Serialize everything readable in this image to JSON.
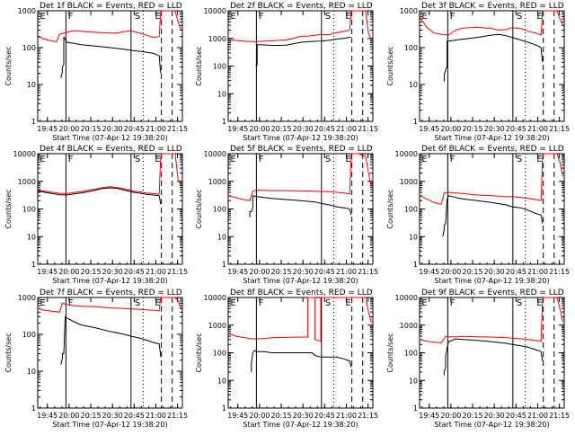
{
  "colors": {
    "events": "#000000",
    "lld": "#ff0000",
    "axis": "#000000",
    "background": "#ffffff"
  },
  "x_ticks": [
    "19:45",
    "20:00",
    "20:15",
    "20:30",
    "20:45",
    "21:00",
    "21:15"
  ],
  "xlabel": "Start Time (07-Apr-12 19:38:20)",
  "ylabel": "Counts/sec",
  "flags": [
    "E",
    "F",
    "S",
    "E"
  ],
  "chart_data": [
    {
      "type": "line",
      "title": "Det 1f BLACK = Events, RED = LLD",
      "x_unit": "minutes after 19:38:20",
      "ylim": [
        1,
        1000
      ],
      "yscale": "log",
      "y_ticks": [
        "1",
        "10",
        "100",
        "1000"
      ],
      "xlim": [
        0,
        100
      ],
      "series": [
        {
          "color": "black",
          "x": [
            16,
            17,
            17,
            18,
            18,
            20,
            25,
            30,
            40,
            50,
            60,
            64,
            70,
            75,
            80,
            82,
            84,
            85
          ],
          "y": [
            15,
            22,
            30,
            35,
            200,
            140,
            130,
            120,
            110,
            100,
            90,
            85,
            80,
            75,
            70,
            65,
            60,
            20
          ]
        },
        {
          "color": "red",
          "x": [
            0,
            5,
            10,
            13,
            15,
            20,
            25,
            30,
            40,
            50,
            55,
            60,
            64,
            70,
            75,
            80,
            84,
            85,
            86,
            90,
            95,
            97,
            99
          ],
          "y": [
            200,
            170,
            150,
            145,
            230,
            260,
            290,
            280,
            260,
            250,
            250,
            270,
            290,
            250,
            220,
            190,
            200,
            900,
            1000,
            1000,
            1000,
            500,
            300
          ]
        }
      ]
    },
    {
      "type": "line",
      "title": "Det 2f BLACK = Events, RED = LLD",
      "x_unit": "minutes after 19:38:20",
      "ylim": [
        1,
        10000
      ],
      "yscale": "log",
      "y_ticks": [
        "1",
        "10",
        "100",
        "1000",
        "10000"
      ],
      "xlim": [
        0,
        100
      ],
      "series": [
        {
          "color": "black",
          "x": [
            19,
            20,
            20,
            25,
            30,
            35,
            40,
            50,
            60,
            64,
            70,
            72,
            75,
            80,
            82,
            84,
            85
          ],
          "y": [
            100,
            110,
            600,
            580,
            560,
            560,
            570,
            720,
            790,
            800,
            860,
            900,
            950,
            1000,
            1050,
            1100,
            1100
          ]
        },
        {
          "color": "red",
          "x": [
            0,
            5,
            10,
            15,
            20,
            25,
            30,
            35,
            40,
            45,
            50,
            55,
            60,
            64,
            70,
            72,
            75,
            80,
            84,
            85,
            86,
            90,
            95,
            97,
            99
          ],
          "y": [
            900,
            850,
            800,
            780,
            760,
            800,
            820,
            850,
            900,
            1000,
            1200,
            1200,
            1300,
            1400,
            1350,
            1500,
            1600,
            1800,
            2000,
            10000,
            10000,
            10000,
            10000,
            1500,
            900
          ]
        }
      ]
    },
    {
      "type": "line",
      "title": "Det 3f BLACK = Events, RED = LLD",
      "x_unit": "minutes after 19:38:20",
      "ylim": [
        1,
        1000
      ],
      "yscale": "log",
      "y_ticks": [
        "1",
        "10",
        "100",
        "1000"
      ],
      "xlim": [
        0,
        100
      ],
      "series": [
        {
          "color": "black",
          "x": [
            17,
            17,
            18,
            19,
            19,
            20,
            25,
            30,
            40,
            50,
            55,
            60,
            64,
            70,
            75,
            80,
            82,
            84,
            85
          ],
          "y": [
            12,
            18,
            25,
            30,
            150,
            150,
            160,
            170,
            190,
            220,
            230,
            210,
            190,
            160,
            140,
            120,
            110,
            100,
            40
          ]
        },
        {
          "color": "red",
          "x": [
            0,
            5,
            10,
            15,
            20,
            25,
            30,
            40,
            50,
            55,
            60,
            64,
            70,
            75,
            80,
            84,
            85,
            86,
            90,
            95,
            97,
            99
          ],
          "y": [
            700,
            350,
            250,
            230,
            220,
            300,
            340,
            360,
            330,
            300,
            310,
            350,
            330,
            280,
            250,
            220,
            1000,
            1000,
            1000,
            1000,
            600,
            400
          ]
        }
      ]
    },
    {
      "type": "line",
      "title": "Det 4f BLACK = Events, RED = LLD",
      "x_unit": "minutes after 19:38:20",
      "ylim": [
        1,
        10000
      ],
      "yscale": "log",
      "y_ticks": [
        "1",
        "10",
        "100",
        "1000",
        "10000"
      ],
      "xlim": [
        0,
        100
      ],
      "series": [
        {
          "color": "black",
          "x": [
            0,
            5,
            10,
            15,
            20,
            25,
            30,
            35,
            40,
            45,
            50,
            55,
            60,
            64,
            66,
            70,
            75,
            80,
            84,
            85
          ],
          "y": [
            450,
            400,
            360,
            330,
            320,
            350,
            380,
            420,
            480,
            550,
            580,
            550,
            480,
            430,
            400,
            380,
            340,
            320,
            300,
            150
          ]
        },
        {
          "color": "red",
          "x": [
            0,
            5,
            10,
            15,
            20,
            25,
            30,
            35,
            40,
            45,
            50,
            55,
            60,
            64,
            66,
            70,
            75,
            80,
            84,
            85,
            86,
            90,
            95,
            97,
            99
          ],
          "y": [
            480,
            440,
            400,
            370,
            360,
            390,
            420,
            470,
            530,
            600,
            640,
            600,
            530,
            480,
            440,
            420,
            380,
            360,
            340,
            8000,
            10000,
            10000,
            10000,
            1200,
            700
          ]
        }
      ]
    },
    {
      "type": "line",
      "title": "Det 5f BLACK = Events, RED = LLD",
      "x_unit": "minutes after 19:38:20",
      "ylim": [
        1,
        10000
      ],
      "yscale": "log",
      "y_ticks": [
        "1",
        "10",
        "100",
        "1000",
        "10000"
      ],
      "xlim": [
        0,
        100
      ],
      "series": [
        {
          "color": "black",
          "x": [
            15,
            15,
            16,
            17,
            17,
            20,
            25,
            30,
            40,
            50,
            60,
            64,
            70,
            75,
            80,
            84,
            85
          ],
          "y": [
            50,
            80,
            80,
            110,
            300,
            280,
            260,
            240,
            220,
            200,
            180,
            160,
            140,
            120,
            110,
            100,
            60
          ]
        },
        {
          "color": "red",
          "x": [
            0,
            5,
            10,
            15,
            17,
            20,
            25,
            30,
            40,
            50,
            60,
            64,
            70,
            75,
            80,
            84,
            85,
            86,
            90,
            95,
            97,
            99
          ],
          "y": [
            300,
            260,
            220,
            200,
            450,
            480,
            470,
            460,
            460,
            450,
            440,
            430,
            420,
            400,
            380,
            350,
            9000,
            10000,
            10000,
            8000,
            2000,
            600
          ]
        }
      ]
    },
    {
      "type": "line",
      "title": "Det 6f BLACK = Events, RED = LLD",
      "x_unit": "minutes after 19:38:20",
      "ylim": [
        1,
        10000
      ],
      "yscale": "log",
      "y_ticks": [
        "1",
        "10",
        "100",
        "1000",
        "10000"
      ],
      "xlim": [
        0,
        100
      ],
      "series": [
        {
          "color": "black",
          "x": [
            16,
            17,
            17,
            18,
            19,
            20,
            25,
            30,
            40,
            50,
            60,
            64,
            70,
            75,
            80,
            84,
            85
          ],
          "y": [
            10,
            18,
            25,
            30,
            220,
            300,
            260,
            230,
            200,
            170,
            140,
            120,
            110,
            90,
            70,
            60,
            30
          ]
        },
        {
          "color": "red",
          "x": [
            0,
            5,
            10,
            15,
            17,
            20,
            25,
            30,
            40,
            50,
            60,
            64,
            70,
            75,
            80,
            84,
            85,
            86,
            90,
            95,
            97,
            99
          ],
          "y": [
            300,
            230,
            170,
            150,
            380,
            400,
            380,
            360,
            320,
            300,
            280,
            280,
            260,
            240,
            220,
            200,
            8000,
            10000,
            10000,
            10000,
            5000,
            1500
          ]
        }
      ]
    },
    {
      "type": "line",
      "title": "Det 7f BLACK = Events, RED = LLD",
      "x_unit": "minutes after 19:38:20",
      "ylim": [
        1,
        1000
      ],
      "yscale": "log",
      "y_ticks": [
        "1",
        "10",
        "100",
        "1000"
      ],
      "xlim": [
        0,
        100
      ],
      "series": [
        {
          "color": "black",
          "x": [
            16,
            17,
            17,
            18,
            19,
            20,
            25,
            30,
            40,
            50,
            60,
            64,
            70,
            75,
            80,
            84,
            85
          ],
          "y": [
            15,
            22,
            30,
            30,
            300,
            280,
            220,
            180,
            150,
            120,
            100,
            90,
            80,
            70,
            60,
            55,
            25
          ]
        },
        {
          "color": "red",
          "x": [
            0,
            5,
            10,
            15,
            17,
            20,
            25,
            30,
            40,
            50,
            60,
            64,
            70,
            75,
            80,
            84,
            85,
            86,
            90,
            95,
            97,
            99
          ],
          "y": [
            500,
            450,
            420,
            400,
            700,
            650,
            600,
            580,
            560,
            520,
            500,
            490,
            480,
            460,
            450,
            430,
            1000,
            1000,
            1000,
            1000,
            800,
            500
          ]
        }
      ]
    },
    {
      "type": "line",
      "title": "Det 8f BLACK = Events, RED = LLD",
      "x_unit": "minutes after 19:38:20",
      "ylim": [
        1,
        10000
      ],
      "yscale": "log",
      "y_ticks": [
        "1",
        "10",
        "100",
        "1000",
        "10000"
      ],
      "xlim": [
        0,
        100
      ],
      "series": [
        {
          "color": "black",
          "x": [
            16,
            16,
            17,
            18,
            20,
            25,
            30,
            40,
            50,
            55,
            58,
            60,
            64,
            70,
            75,
            80,
            84,
            85
          ],
          "y": [
            20,
            40,
            100,
            120,
            110,
            110,
            100,
            100,
            100,
            100,
            100,
            80,
            70,
            70,
            70,
            60,
            50,
            30
          ]
        },
        {
          "color": "red",
          "x": [
            0,
            5,
            10,
            15,
            17,
            20,
            25,
            30,
            40,
            50,
            55,
            55,
            58,
            60,
            60,
            62,
            64,
            64,
            70,
            75,
            80,
            84,
            85,
            86,
            90,
            95,
            97,
            99
          ],
          "y": [
            500,
            400,
            360,
            330,
            320,
            320,
            330,
            350,
            360,
            370,
            370,
            10000,
            10000,
            10000,
            300,
            280,
            260,
            10000,
            10000,
            10000,
            10000,
            10000,
            10000,
            10000,
            10000,
            10000,
            3000,
            1200
          ]
        }
      ]
    },
    {
      "type": "line",
      "title": "Det 9f BLACK = Events, RED = LLD",
      "x_unit": "minutes after 19:38:20",
      "ylim": [
        1,
        10000
      ],
      "yscale": "log",
      "y_ticks": [
        "1",
        "10",
        "100",
        "1000",
        "10000"
      ],
      "xlim": [
        0,
        100
      ],
      "series": [
        {
          "color": "black",
          "x": [
            17,
            17,
            18,
            18,
            20,
            25,
            30,
            40,
            50,
            60,
            64,
            70,
            75,
            80,
            84,
            85
          ],
          "y": [
            15,
            20,
            30,
            80,
            250,
            320,
            300,
            280,
            250,
            220,
            200,
            180,
            160,
            130,
            110,
            50
          ]
        },
        {
          "color": "red",
          "x": [
            0,
            5,
            10,
            15,
            18,
            20,
            25,
            30,
            40,
            50,
            60,
            64,
            70,
            75,
            80,
            84,
            85,
            86,
            90,
            95,
            97,
            99
          ],
          "y": [
            300,
            260,
            240,
            230,
            400,
            380,
            380,
            390,
            380,
            370,
            350,
            340,
            320,
            300,
            280,
            260,
            9000,
            10000,
            10000,
            10000,
            4000,
            1300
          ]
        }
      ]
    }
  ]
}
